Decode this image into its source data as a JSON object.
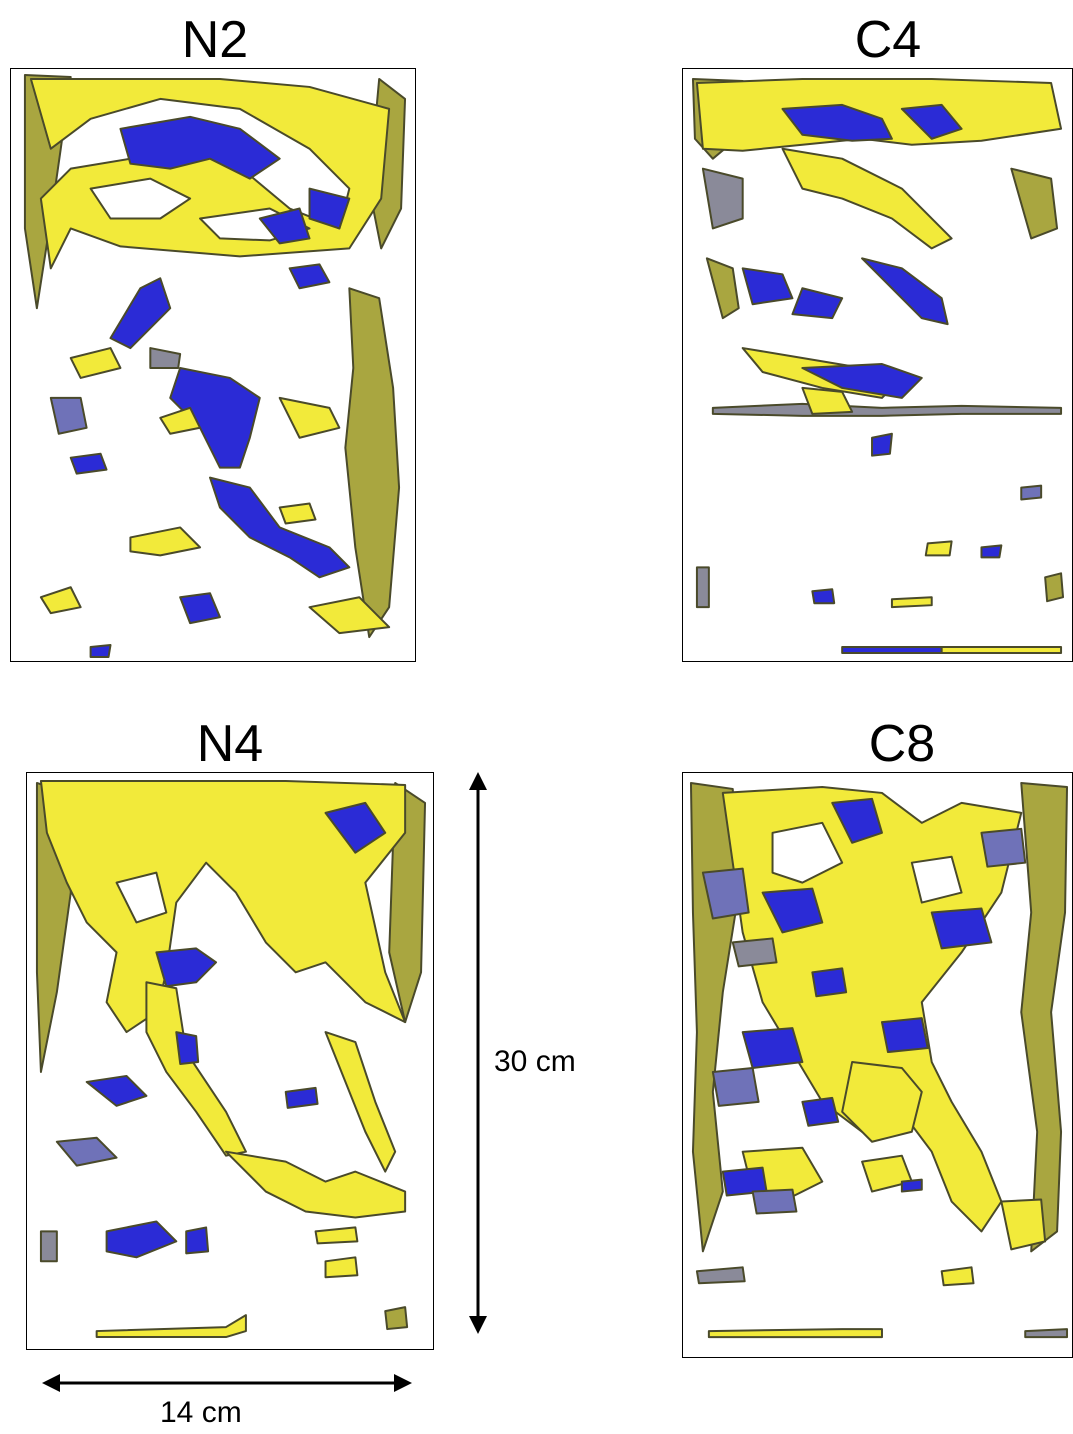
{
  "panels": {
    "n2": {
      "title": "N2"
    },
    "c4": {
      "title": "C4"
    },
    "n4": {
      "title": "N4"
    },
    "c8": {
      "title": "C8"
    }
  },
  "scale": {
    "height_label": "30 cm",
    "width_label": "14 cm"
  },
  "colors": {
    "yellow": "#f2ea3a",
    "olive": "#a9a640",
    "blue": "#2b2bd6",
    "slate": "#6f72b8",
    "gray": "#8a8a99",
    "outline": "#4a4a2a"
  }
}
